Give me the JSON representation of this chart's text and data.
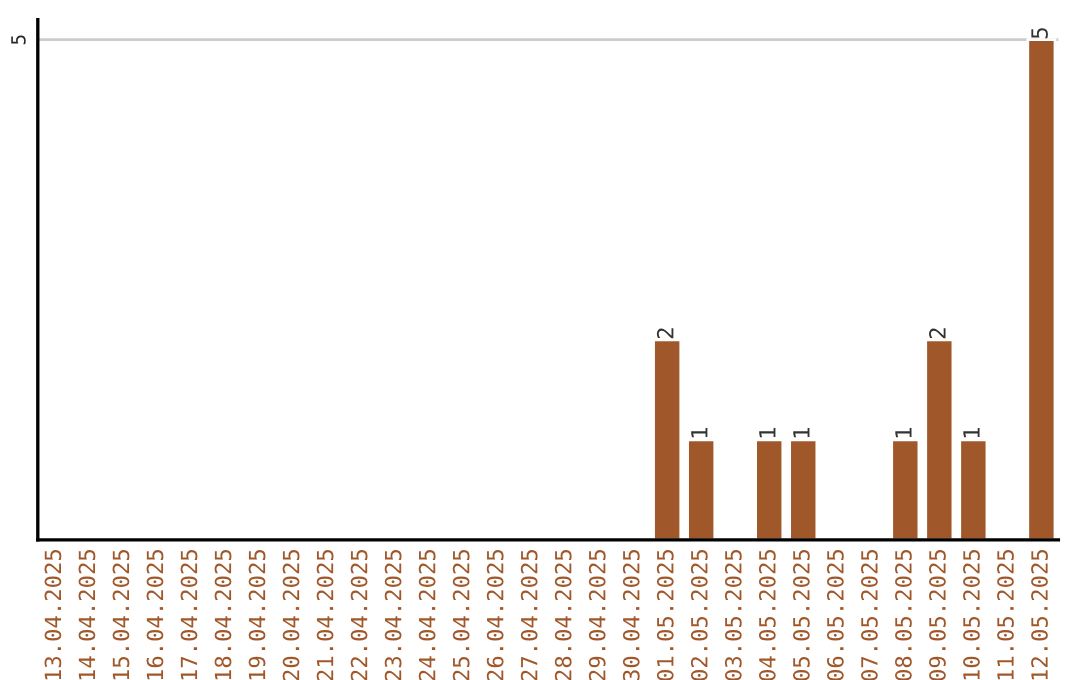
{
  "chart_data": {
    "type": "bar",
    "categories": [
      "13.04.2025",
      "14.04.2025",
      "15.04.2025",
      "16.04.2025",
      "17.04.2025",
      "18.04.2025",
      "19.04.2025",
      "20.04.2025",
      "21.04.2025",
      "22.04.2025",
      "23.04.2025",
      "24.04.2025",
      "25.04.2025",
      "26.04.2025",
      "27.04.2025",
      "28.04.2025",
      "29.04.2025",
      "30.04.2025",
      "01.05.2025",
      "02.05.2025",
      "03.05.2025",
      "04.05.2025",
      "05.05.2025",
      "06.05.2025",
      "07.05.2025",
      "08.05.2025",
      "09.05.2025",
      "10.05.2025",
      "11.05.2025",
      "12.05.2025"
    ],
    "values": [
      null,
      null,
      null,
      null,
      null,
      null,
      null,
      null,
      null,
      null,
      null,
      null,
      null,
      null,
      null,
      null,
      null,
      null,
      2,
      1,
      null,
      1,
      1,
      null,
      null,
      1,
      2,
      1,
      null,
      5
    ],
    "value_labels": [
      null,
      null,
      null,
      null,
      null,
      null,
      null,
      null,
      null,
      null,
      null,
      null,
      null,
      null,
      null,
      null,
      null,
      null,
      "2",
      "1",
      null,
      "1",
      "1",
      null,
      null,
      "1",
      "2",
      "1",
      null,
      "5"
    ],
    "color": "#a0582a",
    "ylim": [
      0,
      5.2
    ],
    "yticks": [
      5
    ],
    "grid": "y"
  }
}
